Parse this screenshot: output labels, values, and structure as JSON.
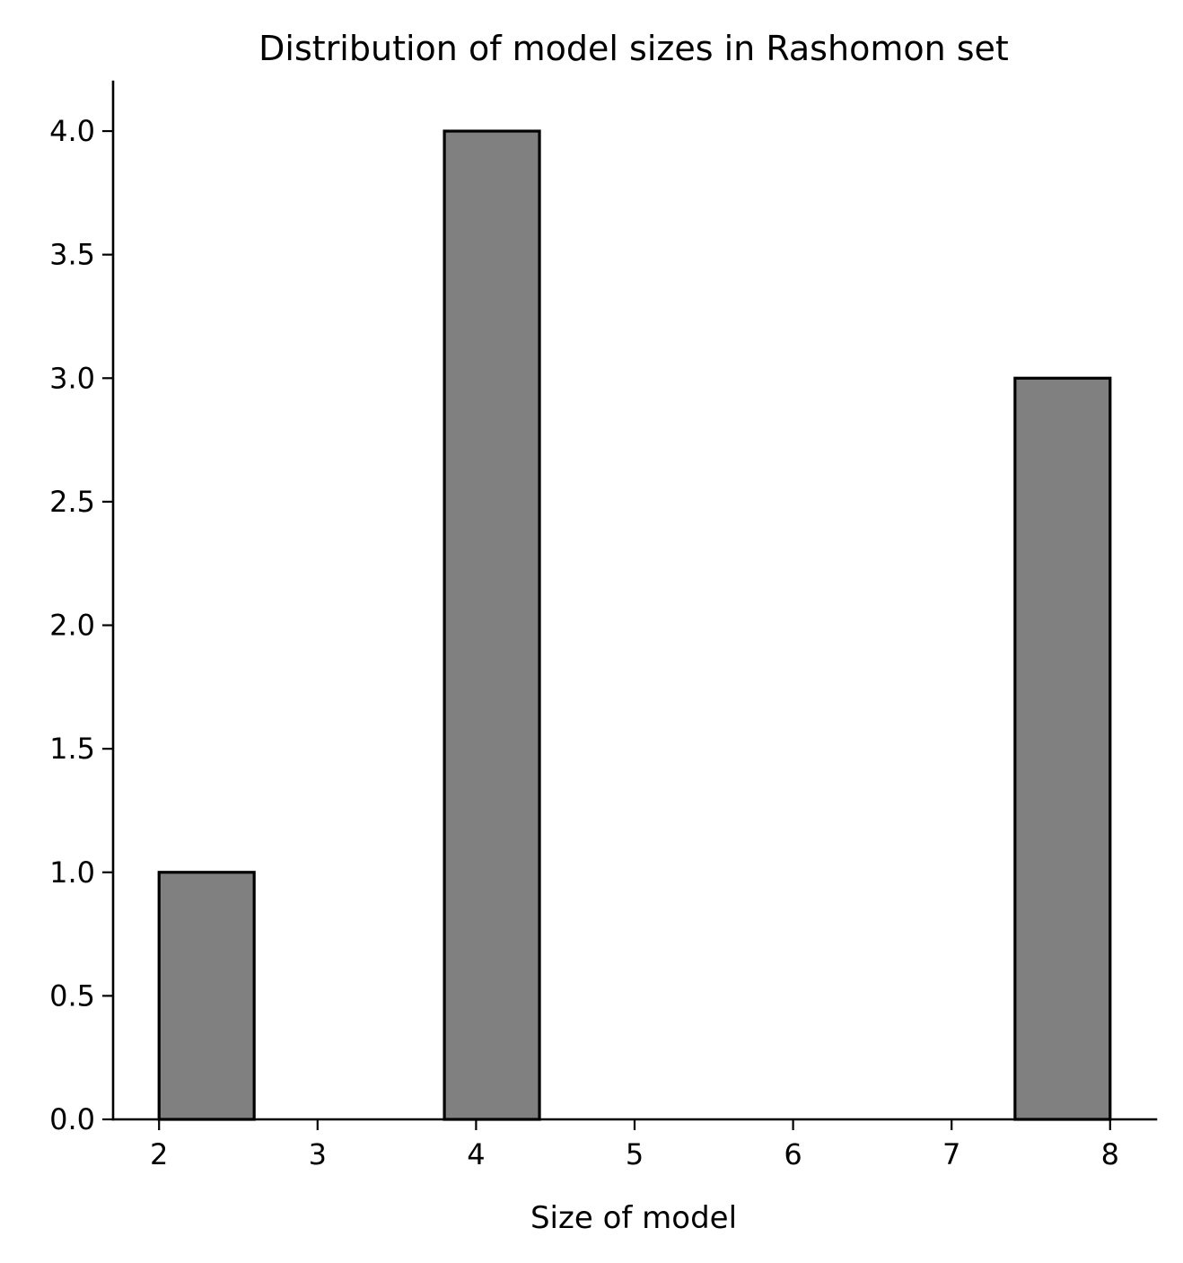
{
  "chart_data": {
    "type": "bar",
    "title": "Distribution of model sizes in Rashomon set",
    "xlabel": "Size of model",
    "ylabel": "",
    "xlim": [
      1.71,
      8.29
    ],
    "ylim": [
      0,
      4.2
    ],
    "x_ticks": [
      2,
      3,
      4,
      5,
      6,
      7,
      8
    ],
    "x_tick_labels": [
      "2",
      "3",
      "4",
      "5",
      "6",
      "7",
      "8"
    ],
    "y_ticks": [
      0,
      0.5,
      1,
      1.5,
      2,
      2.5,
      3,
      3.5,
      4
    ],
    "y_tick_labels": [
      "0.0",
      "0.5",
      "1.0",
      "1.5",
      "2.0",
      "2.5",
      "3.0",
      "3.5",
      "4.0"
    ],
    "bins": [
      {
        "start": 2.0,
        "end": 2.6,
        "count": 1
      },
      {
        "start": 3.8,
        "end": 4.4,
        "count": 4
      },
      {
        "start": 7.4,
        "end": 8.0,
        "count": 3
      }
    ],
    "bar_color": "#808080",
    "edge_color": "#000000",
    "grid": false,
    "spines": "left-bottom"
  }
}
